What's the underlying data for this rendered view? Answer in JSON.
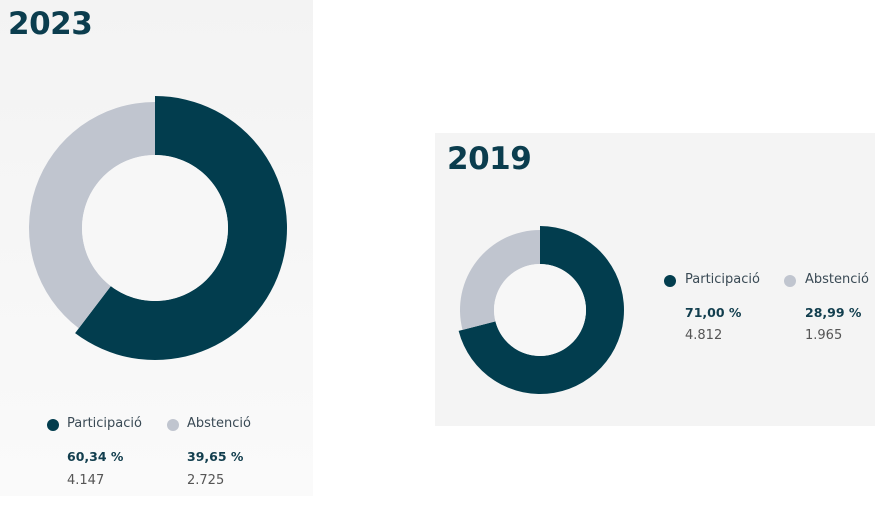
{
  "colors": {
    "participacio": "#023d4e",
    "abstencio": "#c0c5cf"
  },
  "chart_data": [
    {
      "type": "pie",
      "title": "2023",
      "categories": [
        "Participació",
        "Abstenció"
      ],
      "values": [
        60.34,
        39.65
      ],
      "counts": [
        "4.147",
        "2.725"
      ],
      "labels": [
        "60,34 %",
        "39,65 %"
      ]
    },
    {
      "type": "pie",
      "title": "2019",
      "categories": [
        "Participació",
        "Abstenció"
      ],
      "values": [
        71.0,
        28.99
      ],
      "counts": [
        "4.812",
        "1.965"
      ],
      "labels": [
        "71,00 %",
        "28,99 %"
      ]
    }
  ]
}
